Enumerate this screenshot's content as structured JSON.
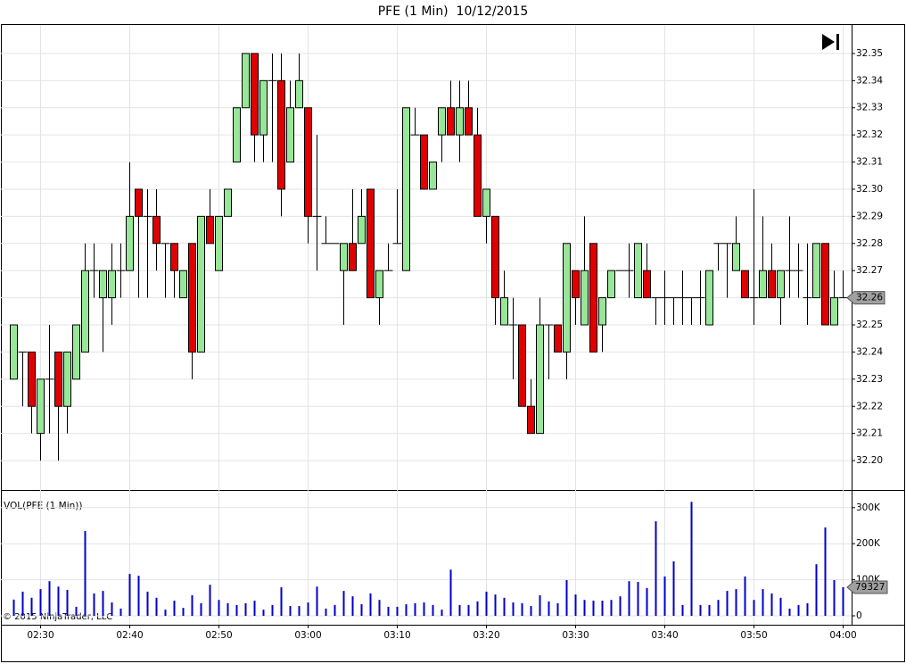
{
  "chart_data": [
    {
      "type": "candlestick",
      "title": "PFE (1 Min)  10/12/2015",
      "x": [
        "02:27",
        "02:28",
        "02:29",
        "02:30",
        "02:31",
        "02:32",
        "02:33",
        "02:34",
        "02:35",
        "02:36",
        "02:37",
        "02:38",
        "02:39",
        "02:40",
        "02:41",
        "02:42",
        "02:43",
        "02:44",
        "02:45",
        "02:46",
        "02:47",
        "02:48",
        "02:49",
        "02:50",
        "02:51",
        "02:52",
        "02:53",
        "02:54",
        "02:55",
        "02:56",
        "02:57",
        "02:58",
        "02:59",
        "03:00",
        "03:01",
        "03:02",
        "03:03",
        "03:04",
        "03:05",
        "03:06",
        "03:07",
        "03:08",
        "03:09",
        "03:10",
        "03:11",
        "03:12",
        "03:13",
        "03:14",
        "03:15",
        "03:16",
        "03:17",
        "03:18",
        "03:19",
        "03:20",
        "03:21",
        "03:22",
        "03:23",
        "03:24",
        "03:25",
        "03:26",
        "03:27",
        "03:28",
        "03:29",
        "03:30",
        "03:31",
        "03:32",
        "03:33",
        "03:34",
        "03:35",
        "03:36",
        "03:37",
        "03:38",
        "03:39",
        "03:40",
        "03:41",
        "03:42",
        "03:43",
        "03:44",
        "03:45",
        "03:46",
        "03:47",
        "03:48",
        "03:49",
        "03:50",
        "03:51",
        "03:52",
        "03:53",
        "03:54",
        "03:55",
        "03:56",
        "03:57",
        "03:58",
        "03:59",
        "04:00"
      ],
      "open": [
        32.23,
        32.24,
        32.24,
        32.21,
        32.23,
        32.24,
        32.22,
        32.23,
        32.24,
        32.27,
        32.26,
        32.26,
        32.27,
        32.27,
        32.3,
        32.29,
        32.29,
        32.28,
        32.28,
        32.26,
        32.28,
        32.24,
        32.29,
        32.27,
        32.29,
        32.31,
        32.33,
        32.35,
        32.32,
        32.34,
        32.34,
        32.31,
        32.33,
        32.33,
        32.29,
        32.28,
        32.28,
        32.27,
        32.28,
        32.28,
        32.3,
        32.26,
        32.27,
        32.28,
        32.27,
        32.32,
        32.32,
        32.3,
        32.32,
        32.33,
        32.32,
        32.33,
        32.32,
        32.29,
        32.29,
        32.25,
        32.25,
        32.25,
        32.22,
        32.21,
        32.25,
        32.25,
        32.24,
        32.27,
        32.25,
        32.28,
        32.25,
        32.26,
        32.27,
        32.27,
        32.26,
        32.27,
        32.26,
        32.26,
        32.26,
        32.26,
        32.26,
        32.26,
        32.25,
        32.28,
        32.28,
        32.27,
        32.27,
        32.26,
        32.26,
        32.27,
        32.26,
        32.27,
        32.27,
        32.26,
        32.26,
        32.28,
        32.25,
        32.26
      ],
      "high": [
        32.25,
        32.24,
        32.24,
        32.23,
        32.25,
        32.24,
        32.24,
        32.25,
        32.28,
        32.28,
        32.27,
        32.28,
        32.28,
        32.31,
        32.3,
        32.3,
        32.3,
        32.28,
        32.28,
        32.27,
        32.28,
        32.29,
        32.3,
        32.29,
        32.3,
        32.33,
        32.35,
        32.35,
        32.34,
        32.35,
        32.35,
        32.34,
        32.35,
        32.33,
        32.32,
        32.29,
        32.28,
        32.28,
        32.3,
        32.3,
        32.3,
        32.27,
        32.28,
        32.3,
        32.33,
        32.33,
        32.32,
        32.31,
        32.33,
        32.34,
        32.34,
        32.34,
        32.33,
        32.3,
        32.29,
        32.27,
        32.26,
        32.25,
        32.23,
        32.26,
        32.25,
        32.25,
        32.28,
        32.27,
        32.29,
        32.28,
        32.26,
        32.27,
        32.27,
        32.28,
        32.28,
        32.28,
        32.26,
        32.27,
        32.26,
        32.27,
        32.26,
        32.27,
        32.27,
        32.28,
        32.28,
        32.29,
        32.27,
        32.3,
        32.29,
        32.28,
        32.27,
        32.29,
        32.28,
        32.28,
        32.28,
        32.28,
        32.27,
        32.27
      ],
      "low": [
        32.23,
        32.22,
        32.21,
        32.2,
        32.21,
        32.2,
        32.21,
        32.23,
        32.24,
        32.26,
        32.24,
        32.25,
        32.26,
        32.27,
        32.26,
        32.26,
        32.27,
        32.26,
        32.26,
        32.26,
        32.23,
        32.24,
        32.28,
        32.27,
        32.29,
        32.31,
        32.33,
        32.31,
        32.31,
        32.31,
        32.29,
        32.31,
        32.33,
        32.28,
        32.27,
        32.28,
        32.28,
        32.25,
        32.27,
        32.28,
        32.26,
        32.25,
        32.27,
        32.28,
        32.27,
        32.32,
        32.3,
        32.3,
        32.31,
        32.32,
        32.31,
        32.32,
        32.29,
        32.28,
        32.25,
        32.25,
        32.23,
        32.22,
        32.21,
        32.21,
        32.23,
        32.24,
        32.23,
        32.25,
        32.25,
        32.24,
        32.24,
        32.26,
        32.27,
        32.26,
        32.26,
        32.26,
        32.25,
        32.25,
        32.25,
        32.25,
        32.25,
        32.25,
        32.25,
        32.27,
        32.26,
        32.27,
        32.26,
        32.25,
        32.26,
        32.26,
        32.25,
        32.26,
        32.26,
        32.25,
        32.26,
        32.25,
        32.25,
        32.26
      ],
      "close": [
        32.25,
        32.24,
        32.22,
        32.23,
        32.23,
        32.22,
        32.24,
        32.25,
        32.27,
        32.27,
        32.27,
        32.27,
        32.27,
        32.29,
        32.29,
        32.29,
        32.28,
        32.28,
        32.27,
        32.27,
        32.24,
        32.29,
        32.28,
        32.29,
        32.3,
        32.33,
        32.35,
        32.32,
        32.34,
        32.34,
        32.3,
        32.33,
        32.34,
        32.29,
        32.29,
        32.28,
        32.28,
        32.28,
        32.27,
        32.29,
        32.26,
        32.27,
        32.27,
        32.28,
        32.33,
        32.32,
        32.3,
        32.31,
        32.33,
        32.32,
        32.33,
        32.32,
        32.29,
        32.3,
        32.26,
        32.26,
        32.25,
        32.22,
        32.21,
        32.25,
        32.25,
        32.24,
        32.28,
        32.26,
        32.27,
        32.24,
        32.26,
        32.27,
        32.27,
        32.27,
        32.28,
        32.26,
        32.26,
        32.26,
        32.26,
        32.26,
        32.26,
        32.26,
        32.27,
        32.28,
        32.28,
        32.28,
        32.26,
        32.26,
        32.27,
        32.26,
        32.27,
        32.27,
        32.27,
        32.26,
        32.28,
        32.25,
        32.26,
        32.26
      ],
      "up_color": "#98e698",
      "down_color": "#e00000",
      "ylim": [
        32.1895,
        32.3605
      ],
      "yticks": [
        {
          "value": 32.2,
          "label": "32.20"
        },
        32.21,
        32.22,
        32.23,
        32.24,
        32.25,
        32.26,
        32.27,
        32.28,
        32.29,
        {
          "value": 32.3,
          "label": "32.30"
        },
        32.31,
        32.32,
        32.33,
        32.34,
        32.35
      ],
      "xticks": [
        "02:30",
        "02:40",
        "02:50",
        "03:00",
        "03:10",
        "03:20",
        "03:30",
        "03:40",
        "03:50",
        "04:00"
      ],
      "grid": true
    },
    {
      "type": "bar",
      "title": "VOL(PFE (1 Min))",
      "color": "#0000cc",
      "values": [
        45000,
        67000,
        50000,
        74000,
        96000,
        81000,
        72000,
        25000,
        235000,
        62000,
        69000,
        37000,
        20000,
        116000,
        111000,
        67000,
        50000,
        17000,
        42000,
        22000,
        57000,
        35000,
        86000,
        44000,
        35000,
        30000,
        35000,
        42000,
        17000,
        30000,
        79000,
        27000,
        27000,
        37000,
        81000,
        20000,
        30000,
        69000,
        54000,
        32000,
        62000,
        44000,
        25000,
        25000,
        32000,
        35000,
        37000,
        30000,
        17000,
        128000,
        30000,
        30000,
        40000,
        67000,
        59000,
        50000,
        37000,
        35000,
        27000,
        57000,
        40000,
        35000,
        99000,
        59000,
        44000,
        42000,
        42000,
        44000,
        54000,
        96000,
        94000,
        77000,
        262000,
        109000,
        151000,
        30000,
        316000,
        30000,
        30000,
        44000,
        69000,
        74000,
        109000,
        44000,
        74000,
        62000,
        50000,
        20000,
        30000,
        35000,
        143000,
        245000,
        99000,
        79327
      ],
      "ylim": [
        -24750,
        346500
      ],
      "yticks": [
        0,
        {
          "value": 100000,
          "label": "100K"
        },
        {
          "value": 200000,
          "label": "200K"
        },
        {
          "value": 300000,
          "label": "300K"
        }
      ],
      "footnote": "© 2015 NinjaTrader, LLC"
    }
  ]
}
